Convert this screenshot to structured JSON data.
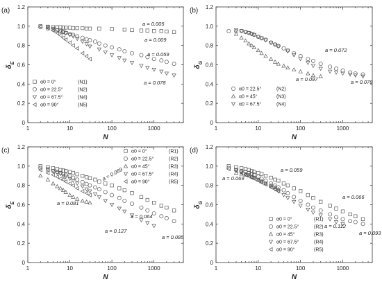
{
  "chart_data": [
    {
      "type": "scatter",
      "panel_label": "(a)",
      "xlabel": "N",
      "ylabel": "δ_E",
      "xscale": "log",
      "xlim": [
        1,
        5000
      ],
      "ylim": [
        0,
        1.2
      ],
      "xticks": [
        "1",
        "10",
        "100",
        "1000"
      ],
      "yticks": [
        "0",
        "0.2",
        "0.4",
        "0.6",
        "0.8",
        "1.0",
        "1.2"
      ],
      "legend_position": "bottom-left",
      "series": [
        {
          "name": "α0 = 0°",
          "code": "(N1)",
          "marker": "square",
          "x": [
            2,
            3,
            4,
            5,
            6,
            7,
            8,
            10,
            12,
            15,
            20,
            25,
            30,
            50,
            100,
            200,
            300,
            500,
            700,
            1000,
            1500,
            2000,
            3000
          ],
          "y": [
            1.0,
            0.995,
            0.99,
            0.99,
            0.99,
            0.985,
            0.985,
            0.985,
            0.98,
            0.98,
            0.98,
            0.975,
            0.975,
            0.975,
            0.97,
            0.965,
            0.96,
            0.955,
            0.955,
            0.95,
            0.95,
            0.945,
            0.94
          ]
        },
        {
          "name": "α0 = 22.5°",
          "code": "(N2)",
          "marker": "circle",
          "x": [
            2,
            3,
            4,
            5,
            6,
            7,
            8,
            10,
            12,
            15,
            20,
            25,
            30,
            40,
            50,
            70,
            100,
            150,
            200,
            300,
            500,
            700,
            1000,
            1500,
            2000,
            3000
          ],
          "y": [
            0.99,
            0.975,
            0.965,
            0.955,
            0.945,
            0.94,
            0.93,
            0.92,
            0.91,
            0.895,
            0.88,
            0.865,
            0.855,
            0.84,
            0.82,
            0.8,
            0.78,
            0.76,
            0.74,
            0.72,
            0.7,
            0.68,
            0.66,
            0.645,
            0.63,
            0.61
          ]
        },
        {
          "name": "α0 = 67.5°",
          "code": "(N4)",
          "marker": "tri-down",
          "x": [
            3,
            4,
            5,
            6,
            7,
            8,
            10,
            12,
            15,
            20,
            25,
            30,
            50,
            70,
            100,
            150,
            200,
            300,
            500,
            700,
            1000,
            1500,
            2000,
            3000
          ],
          "y": [
            0.99,
            0.975,
            0.96,
            0.95,
            0.94,
            0.93,
            0.91,
            0.895,
            0.87,
            0.84,
            0.815,
            0.79,
            0.76,
            0.73,
            0.7,
            0.67,
            0.645,
            0.62,
            0.59,
            0.57,
            0.55,
            0.53,
            0.51,
            0.49
          ]
        },
        {
          "name": "α0 = 90°",
          "code": "(N5)",
          "marker": "tri-left",
          "x": [
            2,
            3,
            4,
            5,
            6,
            7,
            8,
            10,
            12,
            15,
            20,
            25,
            30
          ],
          "y": [
            1.0,
            0.98,
            0.955,
            0.93,
            0.905,
            0.88,
            0.86,
            0.83,
            0.8,
            0.77,
            0.72,
            0.69,
            0.66
          ]
        }
      ],
      "annotations": [
        "a = 0.005",
        "a = 0.009",
        "a = 0.059",
        "a = 0.078"
      ]
    },
    {
      "type": "scatter",
      "panel_label": "(b)",
      "xlabel": "N",
      "ylabel": "δ_G",
      "xscale": "log",
      "xlim": [
        1,
        5000
      ],
      "ylim": [
        0,
        1.2
      ],
      "xticks": [
        "1",
        "10",
        "100",
        "1000"
      ],
      "yticks": [
        "0",
        "0.2",
        "0.4",
        "0.6",
        "0.8",
        "1.0",
        "1.2"
      ],
      "legend_position": "bottom-left",
      "series": [
        {
          "name": "α0 = 22.5°",
          "code": "(N2)",
          "marker": "circle",
          "x": [
            2,
            3,
            4,
            5,
            6,
            7,
            8,
            10,
            12,
            15,
            20,
            25,
            30,
            40,
            50,
            70,
            100,
            150,
            200,
            300,
            500,
            700,
            1000,
            1500,
            2000,
            3000
          ],
          "y": [
            0.95,
            0.95,
            0.95,
            0.94,
            0.93,
            0.92,
            0.91,
            0.89,
            0.875,
            0.86,
            0.83,
            0.81,
            0.795,
            0.77,
            0.75,
            0.72,
            0.69,
            0.66,
            0.64,
            0.61,
            0.58,
            0.56,
            0.54,
            0.52,
            0.51,
            0.5
          ]
        },
        {
          "name": "α0 = 45°",
          "code": "(N3)",
          "marker": "tri-up",
          "x": [
            3,
            4,
            5,
            6,
            7,
            8,
            10,
            12,
            15,
            20,
            25,
            30,
            40,
            50,
            70,
            100,
            150,
            200,
            300
          ],
          "y": [
            0.92,
            0.88,
            0.85,
            0.82,
            0.8,
            0.78,
            0.75,
            0.72,
            0.69,
            0.66,
            0.63,
            0.61,
            0.59,
            0.57,
            0.55,
            0.53,
            0.51,
            0.49,
            0.48
          ]
        },
        {
          "name": "α0 = 67.5°",
          "code": "(N4)",
          "marker": "tri-down",
          "x": [
            3,
            4,
            5,
            6,
            7,
            8,
            10,
            12,
            15,
            20,
            25,
            30,
            50,
            70,
            100,
            150,
            200,
            300,
            500,
            700,
            1000,
            1500,
            2000,
            3000
          ],
          "y": [
            0.96,
            0.95,
            0.94,
            0.93,
            0.92,
            0.91,
            0.89,
            0.875,
            0.855,
            0.83,
            0.81,
            0.79,
            0.74,
            0.7,
            0.66,
            0.62,
            0.59,
            0.56,
            0.53,
            0.52,
            0.51,
            0.5,
            0.49,
            0.48
          ]
        }
      ],
      "annotations": [
        "a = 0.072",
        "a = 0.097",
        "a = 0.078"
      ]
    },
    {
      "type": "scatter",
      "panel_label": "(c)",
      "xlabel": "N",
      "ylabel": "δ_E",
      "xscale": "log",
      "xlim": [
        1,
        5000
      ],
      "ylim": [
        0,
        1.2
      ],
      "xticks": [
        "1",
        "10",
        "100",
        "1000"
      ],
      "yticks": [
        "0",
        "0.2",
        "0.4",
        "0.6",
        "0.8",
        "1.0",
        "1.2"
      ],
      "legend_position": "top-right",
      "series": [
        {
          "name": "α0 = 0°",
          "code": "(R1)",
          "marker": "square",
          "x": [
            2,
            3,
            4,
            5,
            6,
            7,
            8,
            10,
            12,
            15,
            20,
            25,
            30,
            40,
            50,
            70,
            100,
            150,
            200,
            300,
            500,
            700,
            1000,
            1500,
            2000,
            3000
          ],
          "y": [
            1.0,
            0.99,
            0.98,
            0.97,
            0.96,
            0.955,
            0.95,
            0.94,
            0.93,
            0.915,
            0.9,
            0.885,
            0.875,
            0.86,
            0.84,
            0.82,
            0.8,
            0.77,
            0.75,
            0.72,
            0.68,
            0.65,
            0.62,
            0.59,
            0.57,
            0.54
          ]
        },
        {
          "name": "α0 = 22.5°",
          "code": "(R2)",
          "marker": "circle",
          "x": [
            2,
            3,
            4,
            5,
            6,
            7,
            8,
            10,
            12,
            15,
            20,
            25,
            30,
            40,
            50,
            70,
            100,
            150,
            200,
            300,
            500,
            700,
            1000,
            1500,
            2000,
            3000
          ],
          "y": [
            0.98,
            0.96,
            0.95,
            0.94,
            0.93,
            0.92,
            0.91,
            0.895,
            0.88,
            0.86,
            0.835,
            0.815,
            0.8,
            0.78,
            0.76,
            0.73,
            0.7,
            0.67,
            0.64,
            0.61,
            0.57,
            0.54,
            0.51,
            0.48,
            0.46,
            0.43
          ]
        },
        {
          "name": "α0 = 45°",
          "code": "(R3)",
          "marker": "tri-up",
          "x": [
            2,
            3,
            4,
            5,
            6,
            7,
            8,
            10,
            12,
            15,
            20,
            25,
            30
          ],
          "y": [
            0.9,
            0.86,
            0.82,
            0.79,
            0.77,
            0.75,
            0.73,
            0.7,
            0.68,
            0.66,
            0.64,
            0.63,
            0.62
          ]
        },
        {
          "name": "α0 = 67.5°",
          "code": "(R4)",
          "marker": "tri-down",
          "x": [
            3,
            4,
            5,
            6,
            7,
            8,
            10,
            12,
            15,
            20,
            25,
            30,
            40,
            50,
            70,
            100,
            150,
            200,
            300,
            500,
            700,
            1000
          ],
          "y": [
            0.97,
            0.95,
            0.93,
            0.92,
            0.9,
            0.89,
            0.87,
            0.85,
            0.82,
            0.79,
            0.76,
            0.74,
            0.71,
            0.68,
            0.64,
            0.6,
            0.56,
            0.53,
            0.49,
            0.44,
            0.41,
            0.38
          ]
        },
        {
          "name": "α0 = 90°",
          "code": "(R5)",
          "marker": "tri-left",
          "x": [
            2,
            3,
            4,
            5,
            6,
            7,
            8,
            10,
            12,
            15,
            20,
            25,
            30
          ],
          "y": [
            0.96,
            0.93,
            0.91,
            0.89,
            0.87,
            0.86,
            0.84,
            0.82,
            0.8,
            0.77,
            0.74,
            0.72,
            0.7
          ]
        }
      ],
      "annotations": [
        "a = 0.069",
        "a = 0.081",
        "a = 0.064",
        "a = 0.127",
        "a = 0.085"
      ]
    },
    {
      "type": "scatter",
      "panel_label": "(d)",
      "xlabel": "N",
      "ylabel": "δ_G",
      "xscale": "log",
      "xlim": [
        1,
        5000
      ],
      "ylim": [
        0,
        1.2
      ],
      "xticks": [
        "1",
        "10",
        "100",
        "1000"
      ],
      "yticks": [
        "0",
        "0.2",
        "0.4",
        "0.6",
        "0.8",
        "1.0",
        "1.2"
      ],
      "legend_position": "bottom-right",
      "series": [
        {
          "name": "α0 = 0°",
          "code": "(R1)",
          "marker": "square",
          "x": [
            2,
            3,
            4,
            5,
            6,
            7,
            8,
            10,
            12,
            15,
            20,
            25,
            30,
            40,
            50,
            70,
            100,
            150,
            200,
            300,
            500,
            700,
            1000,
            1500,
            2000,
            3000
          ],
          "y": [
            1.0,
            0.99,
            0.98,
            0.97,
            0.96,
            0.95,
            0.94,
            0.93,
            0.92,
            0.9,
            0.88,
            0.86,
            0.85,
            0.82,
            0.8,
            0.77,
            0.74,
            0.7,
            0.67,
            0.63,
            0.59,
            0.56,
            0.53,
            0.5,
            0.48,
            0.45
          ]
        },
        {
          "name": "α0 = 22.5°",
          "code": "(R2)",
          "marker": "circle",
          "x": [
            2,
            3,
            4,
            5,
            6,
            7,
            8,
            10,
            12,
            15,
            20,
            25,
            30,
            40,
            50,
            70,
            100,
            150,
            200,
            300,
            500,
            700,
            1000,
            1500,
            2000,
            3000
          ],
          "y": [
            0.98,
            0.96,
            0.95,
            0.94,
            0.93,
            0.92,
            0.91,
            0.89,
            0.87,
            0.85,
            0.82,
            0.8,
            0.78,
            0.75,
            0.72,
            0.68,
            0.64,
            0.6,
            0.57,
            0.54,
            0.5,
            0.47,
            0.45,
            0.43,
            0.42,
            0.4
          ]
        },
        {
          "name": "α0 = 45°",
          "code": "(R3)",
          "marker": "tri-up",
          "x": [
            3,
            4,
            5,
            6,
            7,
            8,
            10,
            12,
            15,
            20,
            25,
            30
          ],
          "y": [
            0.93,
            0.92,
            0.91,
            0.9,
            0.89,
            0.88,
            0.86,
            0.84,
            0.82,
            0.8,
            0.78,
            0.76
          ]
        },
        {
          "name": "α0 = 67.5°",
          "code": "(R4)",
          "marker": "tri-down",
          "x": [
            3,
            4,
            5,
            6,
            7,
            8,
            10,
            12,
            15,
            20,
            25,
            30,
            40,
            50,
            70,
            100,
            150,
            200,
            300,
            500,
            700,
            1000
          ],
          "y": [
            0.96,
            0.94,
            0.92,
            0.91,
            0.89,
            0.88,
            0.86,
            0.84,
            0.82,
            0.79,
            0.76,
            0.74,
            0.7,
            0.67,
            0.63,
            0.59,
            0.55,
            0.52,
            0.49,
            0.45,
            0.42,
            0.4
          ]
        },
        {
          "name": "α0 = 90°",
          "code": "(R5)",
          "marker": "tri-left",
          "x": [
            2,
            3,
            4,
            5,
            6,
            7,
            8,
            10,
            12,
            15,
            20,
            25,
            30
          ],
          "y": [
            0.97,
            0.95,
            0.93,
            0.91,
            0.9,
            0.88,
            0.87,
            0.85,
            0.83,
            0.81,
            0.78,
            0.76,
            0.74
          ]
        }
      ],
      "annotations": [
        "a = 0.059",
        "a = 0.069",
        "a = 0.066",
        "a = 0.112",
        "a = 0.093"
      ]
    }
  ]
}
